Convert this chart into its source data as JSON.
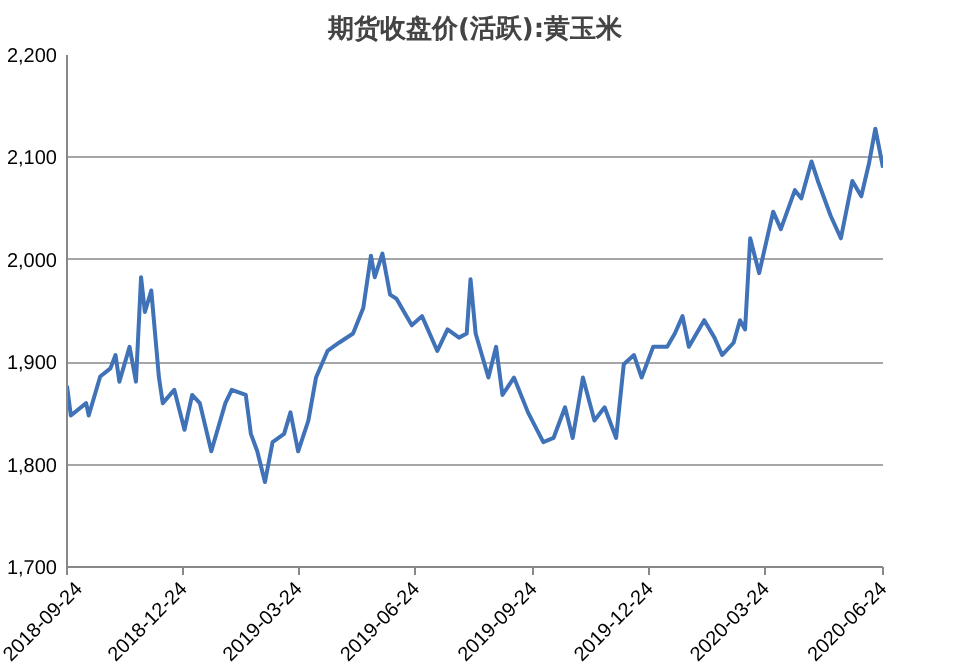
{
  "chart_data": {
    "type": "line",
    "title": "期货收盘价(活跃):黄玉米",
    "x": [
      "2018-09-24",
      "2018-09-27",
      "2018-10-09",
      "2018-10-11",
      "2018-10-20",
      "2018-10-28",
      "2018-11-01",
      "2018-11-04",
      "2018-11-12",
      "2018-11-17",
      "2018-11-21",
      "2018-11-24",
      "2018-11-29",
      "2018-12-05",
      "2018-12-08",
      "2018-12-17",
      "2018-12-25",
      "2018-12-31",
      "2019-01-06",
      "2019-01-15",
      "2019-01-26",
      "2019-01-31",
      "2019-02-11",
      "2019-02-15",
      "2019-02-20",
      "2019-02-26",
      "2019-03-04",
      "2019-03-13",
      "2019-03-18",
      "2019-03-24",
      "2019-04-01",
      "2019-04-07",
      "2019-04-16",
      "2019-04-25",
      "2019-05-06",
      "2019-05-14",
      "2019-05-20",
      "2019-05-23",
      "2019-05-29",
      "2019-06-04",
      "2019-06-09",
      "2019-06-21",
      "2019-06-29",
      "2019-07-11",
      "2019-07-19",
      "2019-07-28",
      "2019-08-03",
      "2019-08-06",
      "2019-08-10",
      "2019-08-20",
      "2019-08-26",
      "2019-08-31",
      "2019-09-09",
      "2019-09-20",
      "2019-10-02",
      "2019-10-10",
      "2019-10-19",
      "2019-10-25",
      "2019-11-02",
      "2019-11-11",
      "2019-11-19",
      "2019-11-28",
      "2019-12-04",
      "2019-12-12",
      "2019-12-18",
      "2019-12-27",
      "2020-01-07",
      "2020-01-13",
      "2020-01-19",
      "2020-01-24",
      "2020-02-05",
      "2020-02-13",
      "2020-02-19",
      "2020-02-28",
      "2020-03-04",
      "2020-03-08",
      "2020-03-12",
      "2020-03-19",
      "2020-03-30",
      "2020-04-05",
      "2020-04-16",
      "2020-04-21",
      "2020-04-29",
      "2020-05-04",
      "2020-05-14",
      "2020-05-22",
      "2020-05-31",
      "2020-06-07",
      "2020-06-13",
      "2020-06-18",
      "2020-06-24"
    ],
    "series": [
      {
        "color": "#4072b8",
        "values": [
          1877,
          1848,
          1860,
          1848,
          1886,
          1894,
          1907,
          1881,
          1915,
          1881,
          1983,
          1949,
          1970,
          1885,
          1860,
          1873,
          1834,
          1868,
          1860,
          1813,
          1860,
          1873,
          1868,
          1830,
          1813,
          1783,
          1822,
          1830,
          1851,
          1813,
          1843,
          1885,
          1911,
          1919,
          1928,
          1953,
          2004,
          1983,
          2006,
          1966,
          1962,
          1936,
          1945,
          1911,
          1932,
          1924,
          1928,
          1981,
          1928,
          1885,
          1915,
          1868,
          1885,
          1851,
          1822,
          1826,
          1856,
          1826,
          1885,
          1843,
          1856,
          1826,
          1898,
          1907,
          1885,
          1915,
          1915,
          1928,
          1945,
          1915,
          1941,
          1924,
          1907,
          1919,
          1941,
          1932,
          2021,
          1987,
          2047,
          2030,
          2068,
          2060,
          2096,
          2077,
          2043,
          2021,
          2077,
          2062,
          2094,
          2128,
          2090
        ]
      }
    ],
    "xlim": [
      "2018-09-24",
      "2020-06-24"
    ],
    "xticks": [
      "2018-09-24",
      "2018-12-24",
      "2019-03-24",
      "2019-06-24",
      "2019-09-24",
      "2019-12-24",
      "2020-03-24",
      "2020-06-24"
    ],
    "ylim": [
      1700,
      2200
    ],
    "yticks": [
      {
        "value": 1700,
        "label": "1,700"
      },
      {
        "value": 1800,
        "label": "1,800"
      },
      {
        "value": 1900,
        "label": "1,900"
      },
      {
        "value": 2000,
        "label": "2,000"
      },
      {
        "value": 2100,
        "label": "2,100"
      },
      {
        "value": 2200,
        "label": "2,200"
      }
    ],
    "grid": "y",
    "marker": "none",
    "line_style": "solid"
  }
}
